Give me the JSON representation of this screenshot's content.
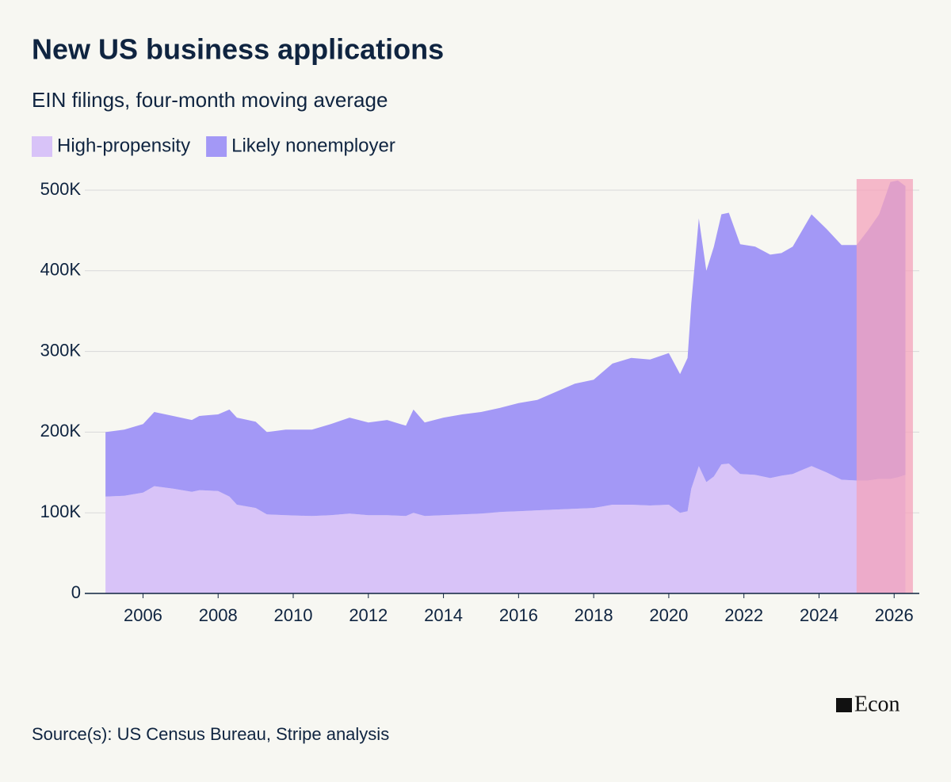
{
  "chart_data": {
    "type": "stacked-area",
    "title": "New US business applications",
    "subtitle": "EIN filings, four-month moving average",
    "source": "Source(s): US Census Bureau, Stripe analysis",
    "logo": "Econ",
    "x": [
      2005.0,
      2005.5,
      2006.0,
      2006.3,
      2006.8,
      2007.3,
      2007.5,
      2008.0,
      2008.3,
      2008.5,
      2009.0,
      2009.3,
      2009.8,
      2010.5,
      2011.0,
      2011.5,
      2012.0,
      2012.5,
      2013.0,
      2013.2,
      2013.5,
      2014.0,
      2014.5,
      2015.0,
      2015.5,
      2016.0,
      2016.5,
      2017.0,
      2017.5,
      2018.0,
      2018.5,
      2019.0,
      2019.5,
      2020.0,
      2020.3,
      2020.5,
      2020.6,
      2020.8,
      2021.0,
      2021.2,
      2021.4,
      2021.6,
      2021.9,
      2022.3,
      2022.7,
      2023.0,
      2023.3,
      2023.8,
      2024.2,
      2024.6,
      2025.0,
      2025.3,
      2025.6,
      2025.9,
      2026.1,
      2026.3
    ],
    "series": [
      {
        "name": "High-propensity",
        "color": "#d8c3f8",
        "values": [
          120000,
          121000,
          125000,
          133000,
          130000,
          126000,
          128000,
          127000,
          120000,
          110000,
          106000,
          98000,
          97000,
          96000,
          97000,
          99000,
          97000,
          97000,
          96000,
          100000,
          96000,
          97000,
          98000,
          99000,
          101000,
          102000,
          103000,
          104000,
          105000,
          106000,
          110000,
          110000,
          109000,
          110000,
          100000,
          102000,
          130000,
          158000,
          138000,
          145000,
          160000,
          161000,
          148000,
          147000,
          143000,
          146000,
          148000,
          158000,
          150000,
          141000,
          140000,
          140000,
          142000,
          142000,
          144000,
          147000
        ]
      },
      {
        "name": "Likely nonemployer",
        "color": "#a398f6",
        "values": [
          80000,
          82000,
          85000,
          92000,
          90000,
          89000,
          92000,
          95000,
          108000,
          108000,
          107000,
          102000,
          106000,
          107000,
          113000,
          119000,
          115000,
          118000,
          112000,
          128000,
          116000,
          121000,
          124000,
          126000,
          129000,
          134000,
          137000,
          146000,
          155000,
          159000,
          175000,
          182000,
          181000,
          188000,
          172000,
          190000,
          230000,
          307000,
          262000,
          285000,
          310000,
          311000,
          285000,
          283000,
          277000,
          276000,
          282000,
          312000,
          302000,
          291000,
          292000,
          310000,
          328000,
          368000,
          368000,
          358000
        ]
      }
    ],
    "xlim": [
      2004.45,
      2026.67
    ],
    "xticks": [
      2006,
      2008,
      2010,
      2012,
      2014,
      2016,
      2018,
      2020,
      2022,
      2024,
      2026
    ],
    "ylim": [
      0,
      500000
    ],
    "yticks": [
      0,
      {
        "value": 100000,
        "label": "100K"
      },
      {
        "value": 200000,
        "label": "200K"
      },
      {
        "value": 300000,
        "label": "300K"
      },
      {
        "value": 400000,
        "label": "400K"
      },
      {
        "value": 500000,
        "label": "500K"
      }
    ],
    "grid": true,
    "highlight": {
      "x0": 2025.0,
      "x1": 2026.5,
      "color": "#f4a3bb"
    }
  }
}
